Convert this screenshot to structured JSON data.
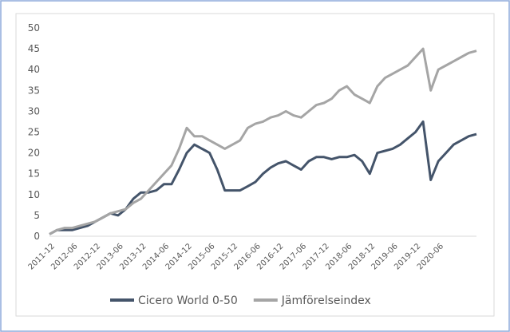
{
  "chart_data": {
    "type": "line",
    "categories": [
      "2011-12",
      null,
      null,
      "2012-06",
      null,
      null,
      "2012-12",
      null,
      null,
      "2013-06",
      null,
      null,
      "2013-12",
      null,
      null,
      "2014-06",
      null,
      null,
      "2014-12",
      null,
      null,
      "2015-06",
      null,
      null,
      "2015-12",
      null,
      null,
      "2016-06",
      null,
      null,
      "2016-12",
      null,
      null,
      "2017-06",
      null,
      null,
      "2017-12",
      null,
      null,
      "2018-06",
      null,
      null,
      "2018-12",
      null,
      null,
      "2019-06",
      null,
      null,
      "2019-12",
      null,
      null,
      "2020-06",
      null,
      null,
      null,
      null,
      null
    ],
    "series": [
      {
        "name": "Cicero World 0-50",
        "color": "#44546a",
        "values": [
          0.5,
          1.5,
          1.5,
          1.5,
          2,
          2.5,
          3.5,
          4.5,
          5.5,
          5,
          6.5,
          9,
          10.5,
          10.5,
          11,
          12.5,
          12.5,
          16,
          20,
          22,
          21,
          20,
          16,
          11,
          11,
          11,
          12,
          13,
          15,
          16.5,
          17.5,
          18,
          17,
          16,
          18,
          19,
          19,
          18.5,
          19,
          19,
          19.5,
          18,
          15,
          20,
          20.5,
          21,
          22,
          23.5,
          25,
          27.5,
          13.5,
          18,
          20,
          22,
          23,
          24,
          24.5
        ]
      },
      {
        "name": "Jämförelseindex",
        "color": "#a5a5a5",
        "values": [
          0.5,
          1.5,
          2,
          2,
          2.5,
          3,
          3.5,
          4.5,
          5.5,
          6,
          6.5,
          8,
          9,
          11,
          13,
          15,
          17,
          21,
          26,
          24,
          24,
          23,
          22,
          21,
          22,
          23,
          26,
          27,
          27.5,
          28.5,
          29,
          30,
          29,
          28.5,
          30,
          31.5,
          32,
          33,
          35,
          36,
          34,
          33,
          32,
          36,
          38,
          39,
          40,
          41,
          43,
          45,
          35,
          40,
          41,
          42,
          43,
          44,
          44.5
        ]
      }
    ],
    "ylim": [
      0,
      50
    ],
    "yticks": [
      0,
      5,
      10,
      15,
      20,
      25,
      30,
      35,
      40,
      45,
      50
    ],
    "grid": false,
    "legend": "bottom"
  }
}
